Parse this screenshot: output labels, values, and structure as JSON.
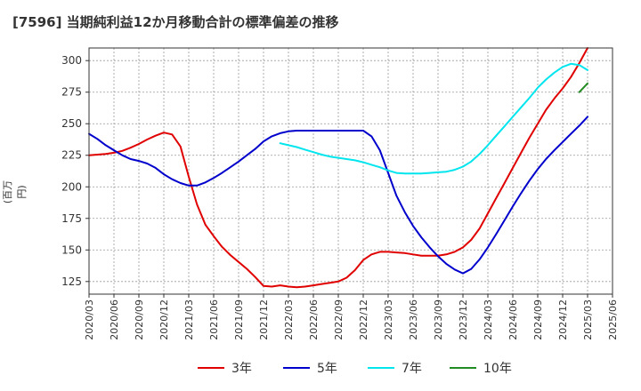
{
  "chart_data": {
    "type": "line",
    "title": "[7596]  当期純利益12か月移動合計の標準偏差の推移",
    "ylabel": "(百万円)",
    "xlabel": "",
    "ylim": [
      115,
      310
    ],
    "yticks": [
      125,
      150,
      175,
      200,
      225,
      250,
      275,
      300
    ],
    "xticks": [
      "2020/03",
      "2020/06",
      "2020/09",
      "2020/12",
      "2021/03",
      "2021/06",
      "2021/09",
      "2021/12",
      "2022/03",
      "2022/06",
      "2022/09",
      "2022/12",
      "2023/03",
      "2023/06",
      "2023/09",
      "2023/12",
      "2024/03",
      "2024/06",
      "2024/09",
      "2024/12",
      "2025/03",
      "2025/06"
    ],
    "grid": true,
    "legend_position": "bottom",
    "series": [
      {
        "name": "3年",
        "color": "#e00000",
        "values": [
          [
            0,
            225
          ],
          [
            1,
            225.5
          ],
          [
            2,
            226
          ],
          [
            3,
            227
          ],
          [
            4,
            228.5
          ],
          [
            5,
            231
          ],
          [
            6,
            234
          ],
          [
            7,
            237.5
          ],
          [
            8,
            240.5
          ],
          [
            9,
            243
          ],
          [
            10,
            241.5
          ],
          [
            11,
            232
          ],
          [
            12,
            208
          ],
          [
            13,
            186
          ],
          [
            14,
            170
          ],
          [
            15,
            161
          ],
          [
            16,
            152.5
          ],
          [
            17,
            146
          ],
          [
            18,
            140.5
          ],
          [
            19,
            135
          ],
          [
            20,
            128.5
          ],
          [
            21,
            121.5
          ],
          [
            22,
            121
          ],
          [
            23,
            122
          ],
          [
            24,
            121
          ],
          [
            25,
            120.5
          ],
          [
            26,
            121
          ],
          [
            27,
            122
          ],
          [
            28,
            123
          ],
          [
            29,
            124
          ],
          [
            30,
            125
          ],
          [
            31,
            128
          ],
          [
            32,
            134
          ],
          [
            33,
            142
          ],
          [
            34,
            146.5
          ],
          [
            35,
            148.5
          ],
          [
            36,
            148.5
          ],
          [
            37,
            148
          ],
          [
            38,
            147.5
          ],
          [
            39,
            146.5
          ],
          [
            40,
            145.5
          ],
          [
            41,
            145.5
          ],
          [
            42,
            145.5
          ],
          [
            43,
            146.5
          ],
          [
            44,
            148.5
          ],
          [
            45,
            152
          ],
          [
            46,
            158
          ],
          [
            47,
            167
          ],
          [
            48,
            179
          ],
          [
            49,
            191
          ],
          [
            50,
            203
          ],
          [
            51,
            215
          ],
          [
            52,
            227
          ],
          [
            53,
            239
          ],
          [
            54,
            250
          ],
          [
            55,
            261
          ],
          [
            56,
            270
          ],
          [
            57,
            278
          ],
          [
            58,
            287
          ],
          [
            59,
            298
          ],
          [
            60,
            310
          ]
        ]
      },
      {
        "name": "5年",
        "color": "#0000cc",
        "values": [
          [
            0,
            242
          ],
          [
            1,
            238
          ],
          [
            2,
            233
          ],
          [
            3,
            229
          ],
          [
            4,
            225
          ],
          [
            5,
            222
          ],
          [
            6,
            220.5
          ],
          [
            7,
            218.5
          ],
          [
            8,
            215
          ],
          [
            9,
            210
          ],
          [
            10,
            206
          ],
          [
            11,
            203
          ],
          [
            12,
            201
          ],
          [
            13,
            201
          ],
          [
            14,
            203.5
          ],
          [
            15,
            207
          ],
          [
            16,
            211
          ],
          [
            17,
            215.5
          ],
          [
            18,
            220
          ],
          [
            19,
            225
          ],
          [
            20,
            230
          ],
          [
            21,
            236
          ],
          [
            22,
            240
          ],
          [
            23,
            242.5
          ],
          [
            24,
            244
          ],
          [
            25,
            244.5
          ],
          [
            26,
            244.5
          ],
          [
            27,
            244.5
          ],
          [
            28,
            244.5
          ],
          [
            29,
            244.5
          ],
          [
            30,
            244.5
          ],
          [
            31,
            244.5
          ],
          [
            32,
            244.5
          ],
          [
            33,
            244.5
          ],
          [
            34,
            240
          ],
          [
            35,
            229
          ],
          [
            36,
            211
          ],
          [
            37,
            193
          ],
          [
            38,
            180
          ],
          [
            39,
            169
          ],
          [
            40,
            160
          ],
          [
            41,
            152
          ],
          [
            42,
            145
          ],
          [
            43,
            139
          ],
          [
            44,
            134.5
          ],
          [
            45,
            131.5
          ],
          [
            46,
            135
          ],
          [
            47,
            142.5
          ],
          [
            48,
            152
          ],
          [
            49,
            162.5
          ],
          [
            50,
            173.5
          ],
          [
            51,
            184.5
          ],
          [
            52,
            195
          ],
          [
            53,
            205
          ],
          [
            54,
            214
          ],
          [
            55,
            222
          ],
          [
            56,
            229
          ],
          [
            57,
            235.5
          ],
          [
            58,
            242
          ],
          [
            59,
            248.5
          ],
          [
            60,
            255.5
          ]
        ]
      },
      {
        "name": "7年",
        "color": "#00e5ee",
        "values": [
          [
            23,
            234.5
          ],
          [
            24,
            233
          ],
          [
            25,
            231.5
          ],
          [
            26,
            229.5
          ],
          [
            27,
            227.5
          ],
          [
            28,
            225.5
          ],
          [
            29,
            224
          ],
          [
            30,
            223
          ],
          [
            31,
            222
          ],
          [
            32,
            221
          ],
          [
            33,
            219.5
          ],
          [
            34,
            217.5
          ],
          [
            35,
            215.5
          ],
          [
            36,
            213
          ],
          [
            37,
            211
          ],
          [
            38,
            210.5
          ],
          [
            39,
            210.5
          ],
          [
            40,
            210.5
          ],
          [
            41,
            211
          ],
          [
            42,
            211.5
          ],
          [
            43,
            212
          ],
          [
            44,
            213.5
          ],
          [
            45,
            216
          ],
          [
            46,
            220
          ],
          [
            47,
            226
          ],
          [
            48,
            233
          ],
          [
            49,
            240.5
          ],
          [
            50,
            248
          ],
          [
            51,
            255.5
          ],
          [
            52,
            263
          ],
          [
            53,
            270.5
          ],
          [
            54,
            278.5
          ],
          [
            55,
            285
          ],
          [
            56,
            290.5
          ],
          [
            57,
            295
          ],
          [
            58,
            297.5
          ],
          [
            59,
            296.5
          ],
          [
            60,
            292.5
          ]
        ]
      },
      {
        "name": "10年",
        "color": "#228b22",
        "values": [
          [
            59,
            275
          ],
          [
            60,
            282
          ]
        ]
      }
    ]
  }
}
